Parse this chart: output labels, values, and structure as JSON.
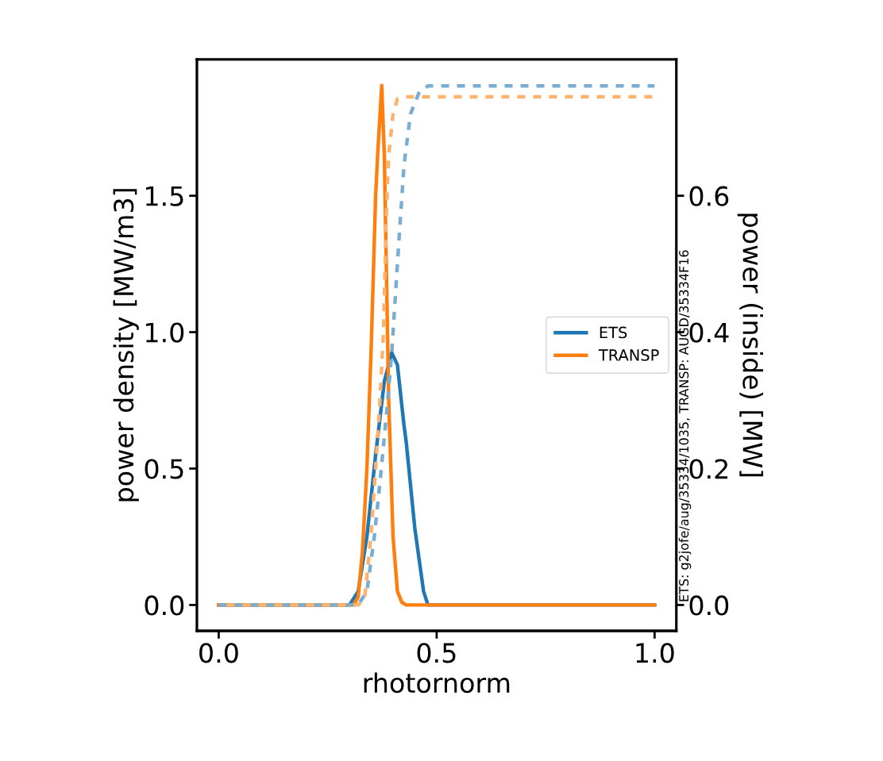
{
  "chart_data": {
    "type": "line",
    "xlabel": "rhotornorm",
    "ylabel": "power density [MW/m3]",
    "y2label": "power (inside) [MW]",
    "xlim": [
      -0.05,
      1.05
    ],
    "xticks": [
      {
        "value": 0,
        "label": "0.0"
      },
      0.5,
      {
        "value": 1,
        "label": "1.0"
      }
    ],
    "ylim": [
      -0.095,
      2.0
    ],
    "yticks": [
      {
        "value": 0,
        "label": "0.0"
      },
      0.5,
      {
        "value": 1,
        "label": "1.0"
      },
      1.5
    ],
    "y2lim": [
      -0.038,
      0.8
    ],
    "y2ticks": [
      {
        "value": 0,
        "label": "0.0"
      },
      0.2,
      0.4,
      0.6
    ],
    "grid": false,
    "legend": "right",
    "marker": "none",
    "annotations": [
      "ETS: g2jofe/aug/35334/1035, TRANSP: AUGD/35334F16"
    ],
    "series": [
      {
        "name": "ETS",
        "color": "#1f77b4",
        "line_style": "solid",
        "x": [
          0,
          0.3,
          0.32,
          0.34,
          0.36,
          0.38,
          0.397,
          0.41,
          0.425,
          0.43,
          0.45,
          0.47,
          0.48,
          1.0
        ],
        "values": [
          0,
          0,
          0.05,
          0.25,
          0.55,
          0.82,
          0.925,
          0.88,
          0.66,
          0.6,
          0.28,
          0.05,
          0,
          0
        ]
      },
      {
        "name": "TRANSP",
        "color": "#ff7f0e",
        "line_style": "solid",
        "x": [
          0,
          0.31,
          0.32,
          0.33,
          0.34,
          0.35,
          0.36,
          0.365,
          0.374,
          0.38,
          0.385,
          0.39,
          0.4,
          0.41,
          0.42,
          0.43,
          1.0
        ],
        "values": [
          0,
          0,
          0.03,
          0.2,
          0.5,
          0.95,
          1.5,
          1.66,
          1.904,
          1.65,
          1.2,
          0.75,
          0.25,
          0.05,
          0.01,
          0,
          0
        ]
      },
      {
        "color": "#79add2",
        "line_style": "dashed",
        "axis": "y2",
        "x": [
          0,
          0.32,
          0.34,
          0.357,
          0.37,
          0.385,
          0.397,
          0.41,
          0.425,
          0.44,
          0.46,
          0.48,
          1.0
        ],
        "values": [
          0,
          0,
          0.02,
          0.1,
          0.18,
          0.28,
          0.37,
          0.5,
          0.644,
          0.72,
          0.752,
          0.761,
          0.761
        ]
      },
      {
        "color": "#ffb26e",
        "line_style": "dashed",
        "axis": "y2",
        "x": [
          0,
          0.32,
          0.335,
          0.349,
          0.36,
          0.37,
          0.378,
          0.385,
          0.39,
          0.4,
          0.41,
          0.43,
          1.0
        ],
        "values": [
          0,
          0,
          0.01,
          0.1,
          0.2,
          0.3,
          0.4,
          0.58,
          0.66,
          0.72,
          0.742,
          0.745,
          0.745
        ]
      }
    ]
  }
}
